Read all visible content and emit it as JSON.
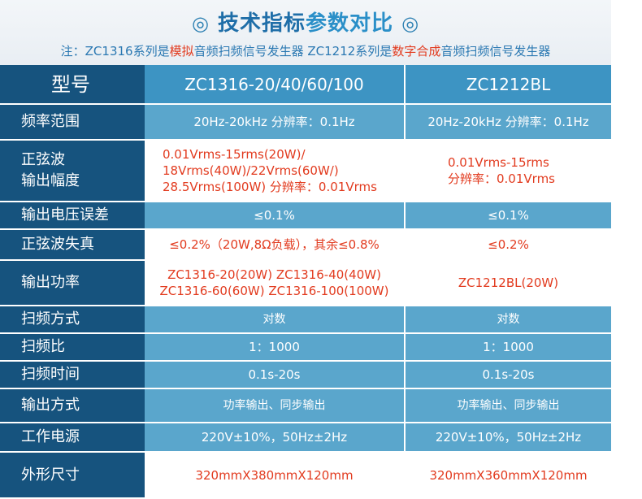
{
  "title": {
    "circle_left": "◎",
    "part1": "技术指标",
    "part2": "参数对比",
    "circle_right": "◎"
  },
  "note": {
    "a": "注：ZC1316系列是",
    "b": "模拟",
    "c": "音频扫频信号发生器  ZC1212系列是",
    "d": "数字合成",
    "e": "音频扫频信号发生器"
  },
  "table": {
    "header": {
      "label": "型号",
      "col1": "ZC1316-20/40/60/100",
      "col2": "ZC1212BL"
    },
    "rows": [
      {
        "label": [
          "频率范围"
        ],
        "col1": [
          "20Hz-20kHz  分辨率：0.1Hz"
        ],
        "col2": [
          "20Hz-20kHz  分辨率：0.1Hz"
        ]
      },
      {
        "label": [
          "正弦波",
          "输出幅度"
        ],
        "col1": [
          "0.01Vrms-15rms(20W)/",
          "18Vrms(40W)/22Vrms(60W/)",
          "28.5Vrms(100W) 分辨率：0.01Vrms"
        ],
        "col2": [
          "0.01Vrms-15rms",
          "分辨率：0.01Vrms"
        ]
      },
      {
        "label": [
          "输出电压误差"
        ],
        "col1": [
          "≤0.1%"
        ],
        "col2": [
          "≤0.1%"
        ]
      },
      {
        "label": [
          "正弦波失真"
        ],
        "col1": [
          "≤0.2%（20W,8Ω负载），其余≤0.8%"
        ],
        "col2": [
          "≤0.2%"
        ]
      },
      {
        "label": [
          "输出功率"
        ],
        "col1": [
          "ZC1316-20(20W) ZC1316-40(40W)",
          "ZC1316-60(60W) ZC1316-100(100W)"
        ],
        "col2": [
          "ZC1212BL(20W)"
        ]
      },
      {
        "label": [
          "扫频方式"
        ],
        "col1": [
          "对数"
        ],
        "col2": [
          "对数"
        ]
      },
      {
        "label": [
          "扫频比"
        ],
        "col1": [
          "1：1000"
        ],
        "col2": [
          "1：1000"
        ]
      },
      {
        "label": [
          "扫频时间"
        ],
        "col1": [
          "0.1s-20s"
        ],
        "col2": [
          "0.1s-20s"
        ]
      },
      {
        "label": [
          "输出方式"
        ],
        "col1": [
          "功率输出、同步输出"
        ],
        "col2": [
          "功率输出、同步输出"
        ]
      },
      {
        "label": [
          "工作电源"
        ],
        "col1": [
          "220V±10%，50Hz±2Hz"
        ],
        "col2": [
          "220V±10%，50Hz±2Hz"
        ]
      },
      {
        "label": [
          "外形尺寸"
        ],
        "col1": [
          "320mmX380mmX120mm"
        ],
        "col2": [
          "320mmX360mmX120mm"
        ]
      }
    ]
  },
  "colors": {
    "label_bg": "#16537e",
    "header_bg": "#3d94c3",
    "row_blue": "#5aa6cc",
    "accent_red": "#e23b1f",
    "title_blue": "#1f6ea8"
  }
}
